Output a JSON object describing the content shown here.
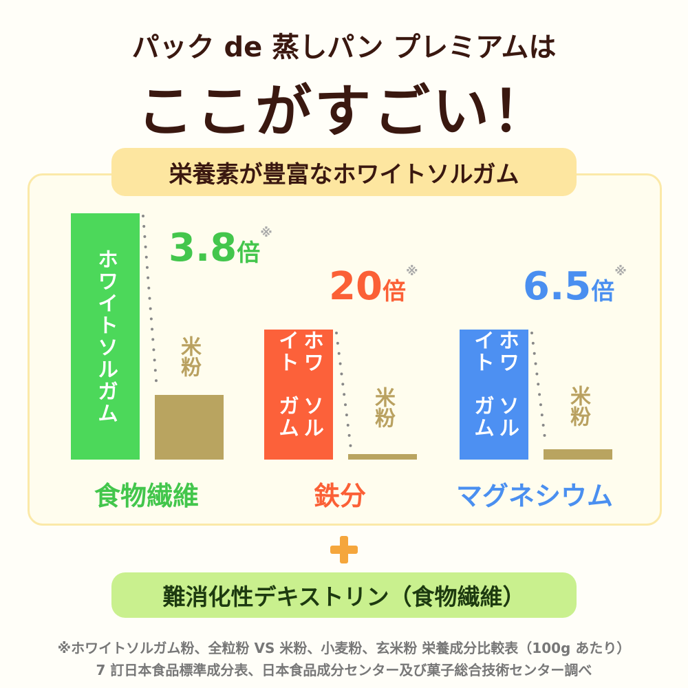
{
  "title": {
    "line1": "パック de 蒸しパン プレミアムは",
    "line2": "ここがすごい！"
  },
  "section_title": "栄養素が豊富なホワイトソルガム",
  "chart_data": {
    "type": "bar",
    "categories": [
      "食物繊維",
      "鉄分",
      "マグネシウム"
    ],
    "series": [
      {
        "name": "ホワイトソルガム",
        "values": [
          3.8,
          20,
          6.5
        ]
      },
      {
        "name": "米粉",
        "values": [
          1,
          1,
          1
        ]
      }
    ],
    "multipliers": [
      "3.8",
      "20",
      "6.5"
    ],
    "unit": "倍",
    "mark": "※",
    "bar_labels": {
      "sorghum": "ホワイトソルガム",
      "sorghum_col1": "ホワイト",
      "sorghum_col2": "ソルガム",
      "rice": "米粉"
    },
    "colors": {
      "fiber": "#43c64c",
      "iron": "#fb6036",
      "magnesium": "#4a8ff0",
      "rice": "#b9a160"
    }
  },
  "plus_icon": "plus-icon",
  "extra": "難消化性デキストリン（食物繊維）",
  "footnote": {
    "line1": "※ホワイトソルガム粉、全粒粉 VS 米粉、小麦粉、玄米粉 栄養成分比較表（100g あたり）",
    "line2": "7 訂日本食品標準成分表、日本食品成分センター及び菓子総合技術センター調べ"
  }
}
